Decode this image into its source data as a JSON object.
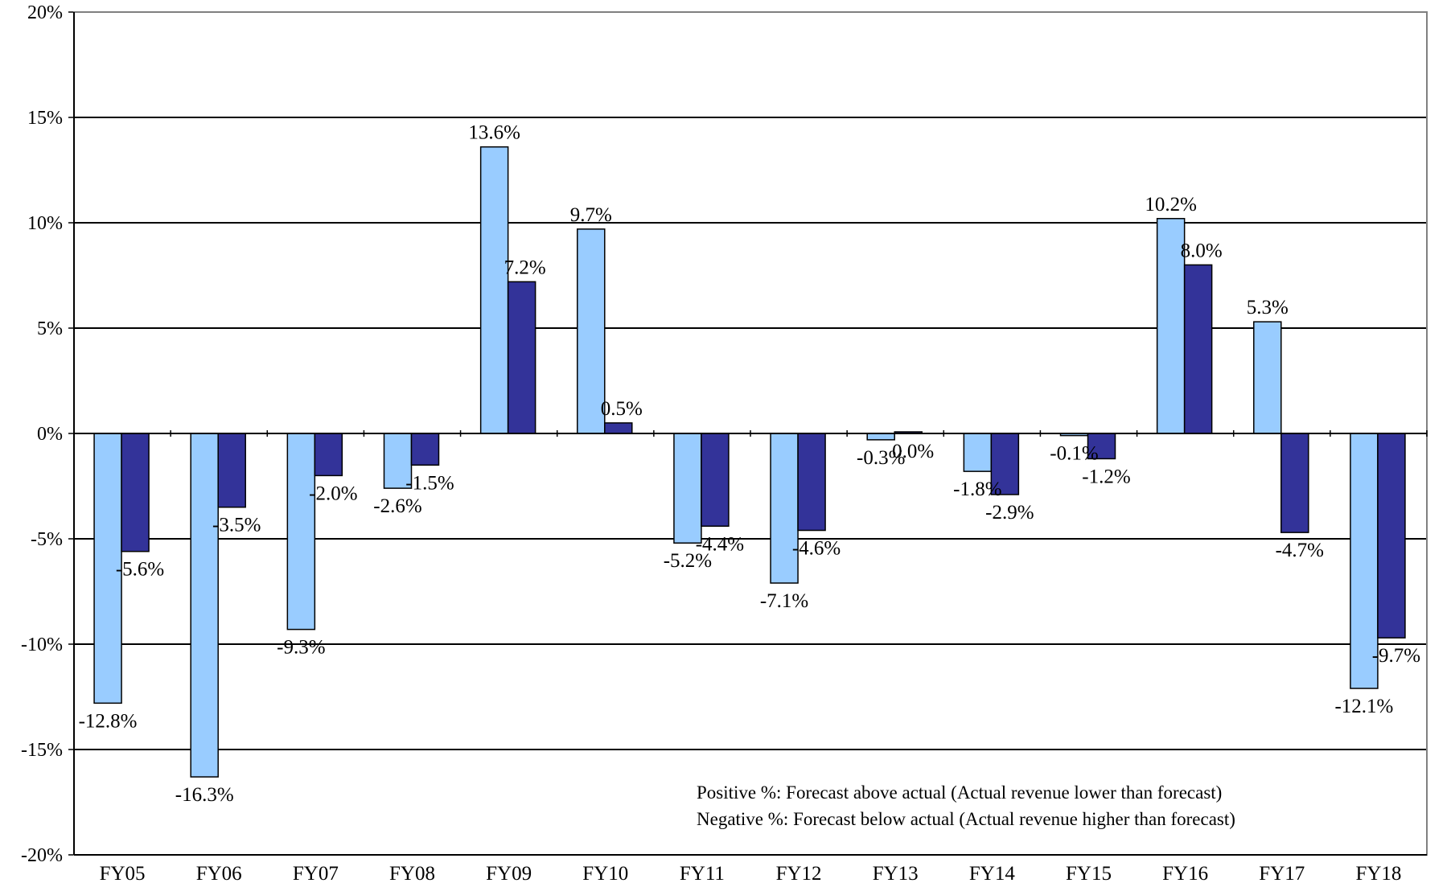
{
  "chart_data": {
    "type": "bar",
    "categories": [
      "FY05",
      "FY06",
      "FY07",
      "FY08",
      "FY09",
      "FY10",
      "FY11",
      "FY12",
      "FY13",
      "FY14",
      "FY15",
      "FY16",
      "FY17",
      "FY18"
    ],
    "series": [
      {
        "values": [
          -12.8,
          -16.3,
          -9.3,
          -2.6,
          13.6,
          9.7,
          -5.2,
          -7.1,
          -0.3,
          -1.8,
          -0.1,
          10.2,
          5.3,
          -12.1
        ],
        "labels": [
          "-12.8%",
          "-16.3%",
          "-9.3%",
          "-2.6%",
          "13.6%",
          "9.7%",
          "-5.2%",
          "-7.1%",
          "-0.3%",
          "-1.8%",
          "-0.1%",
          "10.2%",
          "5.3%",
          "-12.1%"
        ],
        "color": "#99CCFF"
      },
      {
        "values": [
          -5.6,
          -3.5,
          -2.0,
          -1.5,
          7.2,
          0.5,
          -4.4,
          -4.6,
          0.0,
          -2.9,
          -1.2,
          8.0,
          -4.7,
          -9.7
        ],
        "labels": [
          "-5.6%",
          "-3.5%",
          "-2.0%",
          "-1.5%",
          "7.2%",
          "0.5%",
          "-4.4%",
          "-4.6%",
          "0.0%",
          "-2.9%",
          "-1.2%",
          "8.0%",
          "-4.7%",
          "-9.7%"
        ],
        "color": "#333399"
      }
    ],
    "ylim": [
      -20,
      20
    ],
    "yticks": [
      20,
      15,
      10,
      5,
      0,
      -5,
      -10,
      -15,
      -20
    ],
    "ytick_labels": [
      "20%",
      "15%",
      "10%",
      "5%",
      "0%",
      "-5%",
      "-10%",
      "-15%",
      "-20%"
    ],
    "grid": true,
    "annotations": [
      "Positive %: Forecast above actual (Actual revenue lower than forecast)",
      "Negative %: Forecast below actual (Actual revenue higher than forecast)"
    ]
  }
}
